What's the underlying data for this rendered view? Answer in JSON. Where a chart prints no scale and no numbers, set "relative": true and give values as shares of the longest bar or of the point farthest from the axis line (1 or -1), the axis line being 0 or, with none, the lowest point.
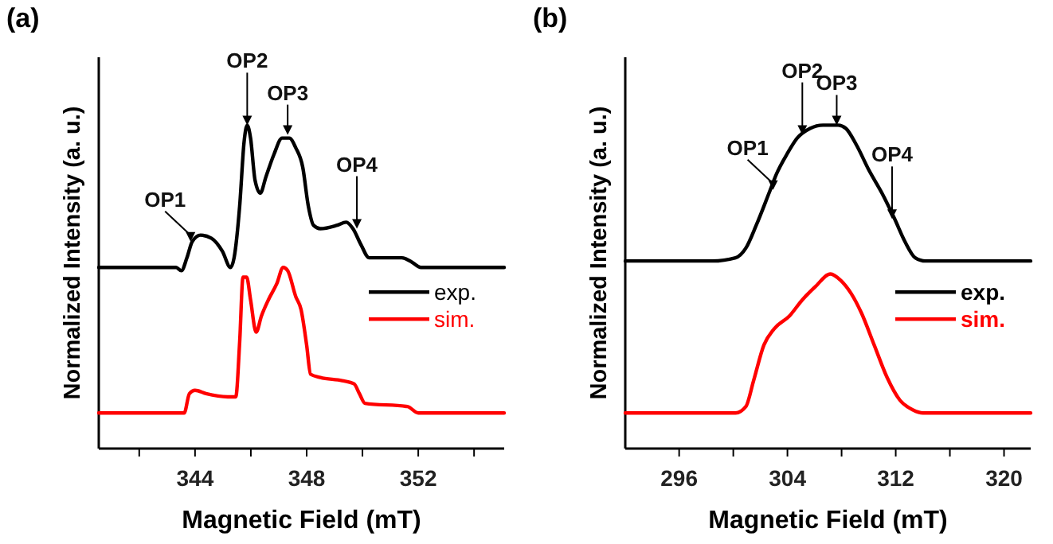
{
  "chart_data": [
    {
      "type": "line",
      "title": "(a)",
      "xlabel": "Magnetic Field (mT)",
      "ylabel": "Normalized Intensity (a. u.)",
      "relative": true,
      "legend": "right",
      "line_style": "solid",
      "marker": "none",
      "xlim": [
        340.55,
        355.08
      ],
      "xticks": [
        {
          "value": 342,
          "label": null
        },
        344,
        {
          "value": 346,
          "label": null
        },
        348,
        {
          "value": 350,
          "label": null
        },
        352,
        {
          "value": 354,
          "label": null
        }
      ],
      "series": [
        {
          "name": "exp.",
          "color": "#000000",
          "x": [
            340.55,
            343.32,
            343.51,
            343.71,
            343.9,
            344.2,
            344.59,
            344.98,
            345.27,
            345.4,
            345.6,
            345.76,
            345.87,
            345.99,
            346.15,
            346.34,
            346.54,
            346.83,
            347.12,
            347.38,
            347.61,
            347.86,
            348.06,
            348.25,
            348.49,
            349.07,
            349.42,
            349.66,
            349.95,
            350.24,
            351.41,
            351.71,
            352.1,
            355.08
          ],
          "values": [
            0.56,
            0.56,
            0.55,
            0.59,
            0.64,
            0.66,
            0.65,
            0.61,
            0.56,
            0.59,
            0.75,
            0.95,
            1.0,
            0.96,
            0.83,
            0.79,
            0.84,
            0.91,
            0.96,
            0.96,
            0.93,
            0.87,
            0.75,
            0.69,
            0.68,
            0.69,
            0.7,
            0.68,
            0.63,
            0.59,
            0.59,
            0.58,
            0.56,
            0.56
          ]
        },
        {
          "name": "sim.",
          "color": "#ff0000",
          "x": [
            340.55,
            343.61,
            343.8,
            344.0,
            344.39,
            345.17,
            345.46,
            345.6,
            345.72,
            345.85,
            345.99,
            346.19,
            346.38,
            346.63,
            346.93,
            347.16,
            347.32,
            347.61,
            347.8,
            348.0,
            348.14,
            348.49,
            349.27,
            349.7,
            349.89,
            350.09,
            351.61,
            352.0,
            355.08
          ],
          "values": [
            0.11,
            0.11,
            0.17,
            0.18,
            0.17,
            0.16,
            0.16,
            0.33,
            0.53,
            0.53,
            0.46,
            0.36,
            0.41,
            0.46,
            0.51,
            0.56,
            0.55,
            0.47,
            0.43,
            0.32,
            0.23,
            0.22,
            0.21,
            0.2,
            0.17,
            0.14,
            0.13,
            0.11,
            0.11
          ]
        }
      ],
      "annotations": [
        {
          "text": "OP1",
          "x": 343.84,
          "y": 0.64
        },
        {
          "text": "OP2",
          "x": 345.87,
          "y": 1.0
        },
        {
          "text": "OP3",
          "x": 347.32,
          "y": 0.97
        },
        {
          "text": "OP4",
          "x": 349.8,
          "y": 0.68
        }
      ]
    },
    {
      "type": "line",
      "title": "(b)",
      "xlabel": "Magnetic Field (mT)",
      "ylabel": "Normalized Intensity (a. u.)",
      "relative": true,
      "legend": "right",
      "line_style": "solid",
      "marker": "none",
      "xlim": [
        292.02,
        321.97
      ],
      "xticks": [
        296,
        {
          "value": 300,
          "label": null
        },
        304,
        {
          "value": 308,
          "label": null
        },
        312,
        {
          "value": 316,
          "label": null
        },
        320
      ],
      "series": [
        {
          "name": "exp.",
          "color": "#000000",
          "x": [
            292.02,
            298.46,
            300.17,
            300.93,
            301.69,
            302.64,
            303.2,
            303.96,
            304.72,
            305.67,
            306.62,
            307.75,
            308.32,
            309.08,
            310.03,
            310.98,
            311.92,
            312.68,
            313.44,
            314.2,
            321.97
          ],
          "values": [
            0.58,
            0.58,
            0.59,
            0.62,
            0.69,
            0.79,
            0.85,
            0.91,
            0.96,
            0.99,
            1.0,
            1.0,
            0.99,
            0.94,
            0.86,
            0.79,
            0.71,
            0.64,
            0.59,
            0.58,
            0.58
          ]
        },
        {
          "name": "sim.",
          "color": "#ff0000",
          "x": [
            292.02,
            300.17,
            300.93,
            301.5,
            302.26,
            303.01,
            304.15,
            305.1,
            306.05,
            307.18,
            307.94,
            308.7,
            309.46,
            310.41,
            311.36,
            312.3,
            313.25,
            314.01,
            321.97
          ],
          "values": [
            0.11,
            0.11,
            0.13,
            0.21,
            0.32,
            0.37,
            0.41,
            0.46,
            0.5,
            0.54,
            0.52,
            0.48,
            0.42,
            0.32,
            0.22,
            0.15,
            0.12,
            0.11,
            0.11
          ]
        }
      ],
      "annotations": [
        {
          "text": "OP1",
          "x": 302.94,
          "y": 0.8
        },
        {
          "text": "OP2",
          "x": 305.1,
          "y": 0.97
        },
        {
          "text": "OP3",
          "x": 307.64,
          "y": 1.0
        },
        {
          "text": "OP4",
          "x": 311.73,
          "y": 0.71
        }
      ]
    }
  ]
}
